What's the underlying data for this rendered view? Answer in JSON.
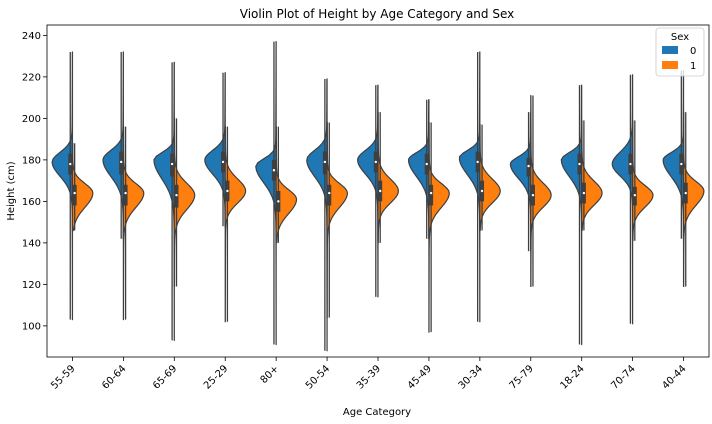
{
  "chart_data": {
    "type": "violin",
    "title": "Violin Plot of Height by Age Category and Sex",
    "xlabel": "Age Category",
    "ylabel": "Height (cm)",
    "ylim": [
      85,
      245
    ],
    "yticks": [
      100,
      120,
      140,
      160,
      180,
      200,
      220,
      240
    ],
    "split": true,
    "grid": false,
    "legend": {
      "title": "Sex",
      "placement": "top-right",
      "entries": [
        {
          "label": "0",
          "color": "#1f77b4"
        },
        {
          "label": "1",
          "color": "#ff7f0e"
        }
      ]
    },
    "categories": [
      "55-59",
      "60-64",
      "65-69",
      "25-29",
      "80+",
      "50-54",
      "35-39",
      "45-49",
      "30-34",
      "75-79",
      "18-24",
      "70-74",
      "40-44"
    ],
    "series": [
      {
        "name": "0",
        "color": "#1f77b4",
        "stats": [
          {
            "min": 103,
            "max": 232,
            "mode": 179,
            "median": 178,
            "q1": 173,
            "q3": 183
          },
          {
            "min": 142,
            "max": 232,
            "mode": 180,
            "median": 179,
            "q1": 173,
            "q3": 184
          },
          {
            "min": 93,
            "max": 227,
            "mode": 180,
            "median": 178,
            "q1": 172,
            "q3": 183
          },
          {
            "min": 148,
            "max": 222,
            "mode": 180,
            "median": 179,
            "q1": 174,
            "q3": 184
          },
          {
            "min": 91,
            "max": 237,
            "mode": 177,
            "median": 175,
            "q1": 170,
            "q3": 180
          },
          {
            "min": 88,
            "max": 219,
            "mode": 180,
            "median": 179,
            "q1": 173,
            "q3": 184
          },
          {
            "min": 114,
            "max": 216,
            "mode": 180,
            "median": 179,
            "q1": 174,
            "q3": 184
          },
          {
            "min": 142,
            "max": 209,
            "mode": 180,
            "median": 178,
            "q1": 173,
            "q3": 183
          },
          {
            "min": 102,
            "max": 232,
            "mode": 181,
            "median": 179,
            "q1": 174,
            "q3": 184
          },
          {
            "min": 136,
            "max": 203,
            "mode": 178,
            "median": 177,
            "q1": 172,
            "q3": 181
          },
          {
            "min": 91,
            "max": 216,
            "mode": 180,
            "median": 178,
            "q1": 173,
            "q3": 183
          },
          {
            "min": 101,
            "max": 221,
            "mode": 178,
            "median": 178,
            "q1": 173,
            "q3": 183
          },
          {
            "min": 142,
            "max": 223,
            "mode": 180,
            "median": 178,
            "q1": 173,
            "q3": 183
          }
        ]
      },
      {
        "name": "1",
        "color": "#ff7f0e",
        "stats": [
          {
            "min": 146,
            "max": 188,
            "mode": 164,
            "median": 164,
            "q1": 158,
            "q3": 168
          },
          {
            "min": 103,
            "max": 196,
            "mode": 164,
            "median": 164,
            "q1": 158,
            "q3": 168
          },
          {
            "min": 119,
            "max": 200,
            "mode": 163,
            "median": 163,
            "q1": 157,
            "q3": 168
          },
          {
            "min": 102,
            "max": 196,
            "mode": 165,
            "median": 165,
            "q1": 160,
            "q3": 170
          },
          {
            "min": 140,
            "max": 196,
            "mode": 161,
            "median": 160,
            "q1": 155,
            "q3": 165
          },
          {
            "min": 104,
            "max": 198,
            "mode": 164,
            "median": 164,
            "q1": 158,
            "q3": 168
          },
          {
            "min": 140,
            "max": 203,
            "mode": 165,
            "median": 165,
            "q1": 160,
            "q3": 170
          },
          {
            "min": 97,
            "max": 198,
            "mode": 164,
            "median": 164,
            "q1": 158,
            "q3": 168
          },
          {
            "min": 146,
            "max": 197,
            "mode": 165,
            "median": 165,
            "q1": 160,
            "q3": 170
          },
          {
            "min": 119,
            "max": 211,
            "mode": 163,
            "median": 163,
            "q1": 158,
            "q3": 168
          },
          {
            "min": 146,
            "max": 199,
            "mode": 164,
            "median": 164,
            "q1": 159,
            "q3": 169
          },
          {
            "min": 141,
            "max": 199,
            "mode": 163,
            "median": 163,
            "q1": 158,
            "q3": 167
          },
          {
            "min": 119,
            "max": 203,
            "mode": 165,
            "median": 164,
            "q1": 159,
            "q3": 169
          }
        ]
      }
    ]
  }
}
